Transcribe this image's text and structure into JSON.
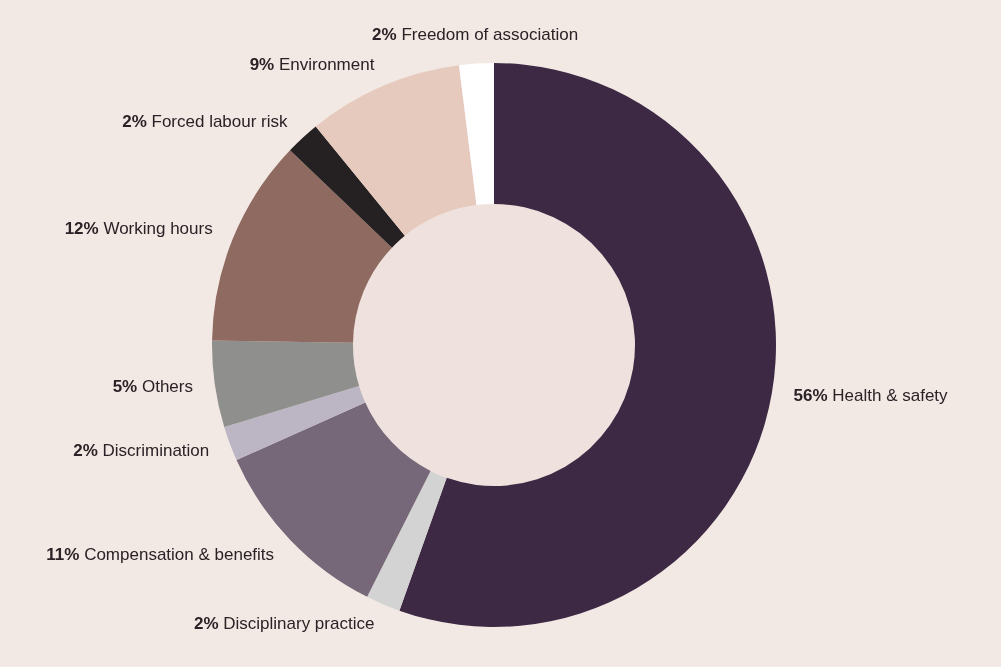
{
  "chart_data": {
    "type": "donut",
    "categories": [
      "Health & safety",
      "Disciplinary practice",
      "Compensation & benefits",
      "Discrimination",
      "Others",
      "Working hours",
      "Forced labour risk",
      "Environment",
      "Freedom of association"
    ],
    "values": [
      56,
      2,
      11,
      2,
      5,
      12,
      2,
      9,
      2
    ],
    "value_labels": [
      "56%",
      "2%",
      "11%",
      "2%",
      "5%",
      "12%",
      "2%",
      "9%",
      "2%"
    ],
    "colors": [
      "#3d2944",
      "#d3d3d3",
      "#766878",
      "#bcb5c4",
      "#8f908d",
      "#8f6a60",
      "#252122",
      "#e6cabd",
      "#ffffff"
    ],
    "legend": false
  }
}
